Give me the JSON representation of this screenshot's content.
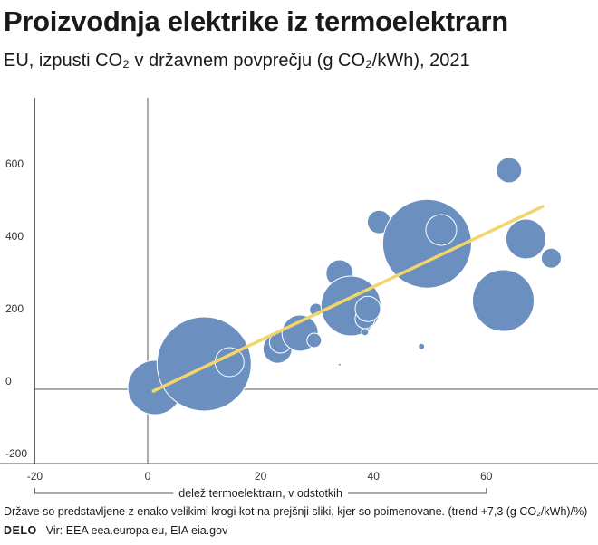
{
  "header": {
    "title": "Proizvodnja elektrike iz termoelektrarn",
    "subtitle": "EU, izpusti CO₂ v državnem povprečju (g CO₂/kWh), 2021"
  },
  "footer": {
    "note": "Države so predstavljene z enako velikimi krogi kot na prejšnji sliki, kjer so poimenovane. (trend +7,3 (g CO₂/kWh)/%)",
    "brand": "DELO",
    "source": "Vir: EEA eea.europa.eu, EIA eia.gov"
  },
  "chart_data": {
    "type": "scatter",
    "title": "Proizvodnja elektrike iz termoelektrarn",
    "subtitle": "EU, izpusti CO₂ v državnem povprečju (g CO₂/kWh), 2021",
    "xlabel": "delež termoelektrarn, v odstotkih",
    "ylabel": "",
    "xlim": [
      -20,
      76
    ],
    "ylim": [
      -200,
      800
    ],
    "x_ticks": [
      -20,
      0,
      20,
      40,
      60
    ],
    "y_ticks": [
      600,
      400,
      200,
      0,
      -200
    ],
    "x_tick_labels": [
      "-20",
      "0",
      "20",
      "40",
      "60"
    ],
    "y_tick_labels": [
      "600",
      "400",
      "200",
      "0",
      "-200"
    ],
    "grid": false,
    "colors": {
      "bubble": "#6b8fbf",
      "bubble_edge": "#ffffff",
      "trend": "#f2d56b",
      "axis": "#555555"
    },
    "points": [
      {
        "x": 1.3,
        "y": 5,
        "size": 30
      },
      {
        "x": 10,
        "y": 70,
        "size": 52
      },
      {
        "x": 14.5,
        "y": 75,
        "size": 16
      },
      {
        "x": 23,
        "y": 112,
        "size": 16
      },
      {
        "x": 23.5,
        "y": 130,
        "size": 12
      },
      {
        "x": 27,
        "y": 155,
        "size": 20
      },
      {
        "x": 29.5,
        "y": 135,
        "size": 8
      },
      {
        "x": 29.8,
        "y": 220,
        "size": 7
      },
      {
        "x": 34,
        "y": 68,
        "size": 1.5
      },
      {
        "x": 34,
        "y": 320,
        "size": 15
      },
      {
        "x": 36,
        "y": 230,
        "size": 33
      },
      {
        "x": 38.5,
        "y": 158,
        "size": 4
      },
      {
        "x": 38.5,
        "y": 195,
        "size": 11
      },
      {
        "x": 39,
        "y": 222,
        "size": 14
      },
      {
        "x": 41,
        "y": 462,
        "size": 13
      },
      {
        "x": 48.5,
        "y": 118,
        "size": 3.5
      },
      {
        "x": 49.5,
        "y": 402,
        "size": 49
      },
      {
        "x": 52,
        "y": 440,
        "size": 17
      },
      {
        "x": 63,
        "y": 245,
        "size": 34
      },
      {
        "x": 64,
        "y": 605,
        "size": 14
      },
      {
        "x": 67,
        "y": 415,
        "size": 22
      },
      {
        "x": 71.5,
        "y": 362,
        "size": 11
      }
    ],
    "trend": {
      "x": [
        1,
        70
      ],
      "y": [
        -5,
        505
      ]
    }
  }
}
